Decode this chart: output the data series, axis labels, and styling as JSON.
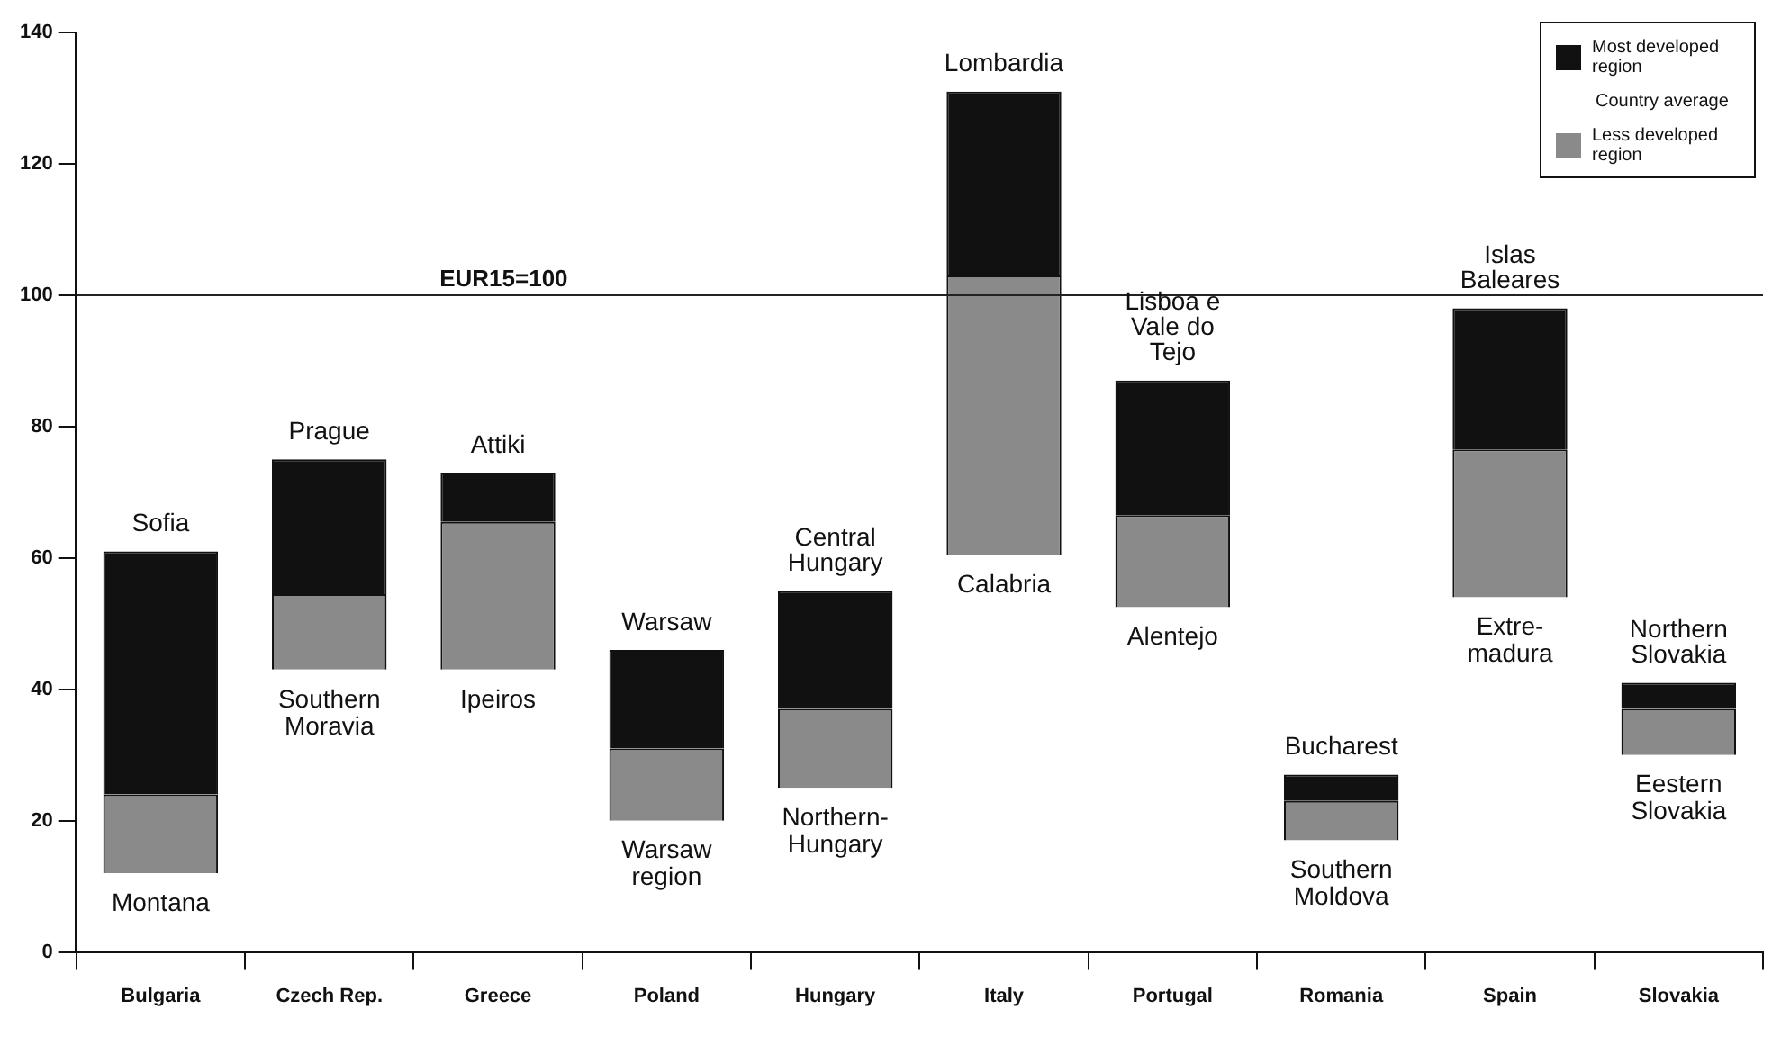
{
  "chart_data": {
    "type": "bar",
    "categories": [
      "Bulgaria",
      "Czech Rep.",
      "Greece",
      "Poland",
      "Hungary",
      "Italy",
      "Portugal",
      "Romania",
      "Spain",
      "Slovakia"
    ],
    "series": [
      {
        "name": "Less developed region",
        "color": "#8a8a8a",
        "base": [
          12,
          43,
          43,
          20,
          25,
          60.5,
          52.5,
          17,
          54,
          30
        ],
        "values": [
          12,
          11.5,
          22.5,
          11,
          12,
          42.5,
          14,
          6,
          22.5,
          7
        ]
      },
      {
        "name": "Most developed region",
        "color": "#111111",
        "base": [
          24,
          54.5,
          65.5,
          31,
          37,
          103,
          66.5,
          23,
          76.5,
          37
        ],
        "values": [
          37,
          20.5,
          7.5,
          15,
          18,
          28,
          20.5,
          4,
          21.5,
          4
        ]
      }
    ],
    "ylim": [
      0,
      140
    ],
    "yticks": [
      0,
      20,
      40,
      60,
      80,
      100,
      120,
      140
    ],
    "grid": false,
    "legend": "top right",
    "ref_lines": [
      {
        "axis": "y",
        "value": 100,
        "label": "EUR15=100",
        "color": "#222222"
      }
    ],
    "annotations": [
      "Country average",
      {
        "text": "Sofia",
        "x": "Bulgaria",
        "y": 61
      },
      {
        "text": "Montana",
        "x": "Bulgaria",
        "y": 12
      },
      {
        "text": "Prague",
        "x": "Czech Rep.",
        "y": 75
      },
      {
        "text": "Southern\nMoravia",
        "x": "Czech Rep.",
        "y": 43
      },
      {
        "text": "Attiki",
        "x": "Greece",
        "y": 73
      },
      {
        "text": "Ipeiros",
        "x": "Greece",
        "y": 43
      },
      {
        "text": "Warsaw",
        "x": "Poland",
        "y": 46
      },
      {
        "text": "Warsaw\nregion",
        "x": "Poland",
        "y": 20
      },
      {
        "text": "Central\nHungary",
        "x": "Hungary",
        "y": 55
      },
      {
        "text": "Northern-\nHungary",
        "x": "Hungary",
        "y": 25
      },
      {
        "text": "Lombardia",
        "x": "Italy",
        "y": 131
      },
      {
        "text": "Calabria",
        "x": "Italy",
        "y": 60.5
      },
      {
        "text": "Lisboa e\nVale do\nTejo",
        "x": "Portugal",
        "y": 87
      },
      {
        "text": "Alentejo",
        "x": "Portugal",
        "y": 52.5
      },
      {
        "text": "Bucharest",
        "x": "Romania",
        "y": 27
      },
      {
        "text": "Southern\nMoldova",
        "x": "Romania",
        "y": 17
      },
      {
        "text": "Islas\nBaleares",
        "x": "Spain",
        "y": 98
      },
      {
        "text": "Extre-\nmadura",
        "x": "Spain",
        "y": 54
      },
      {
        "text": "Northern\nSlovakia",
        "x": "Slovakia",
        "y": 41
      },
      {
        "text": "Eestern\nSlovakia",
        "x": "Slovakia",
        "y": 30
      }
    ]
  }
}
